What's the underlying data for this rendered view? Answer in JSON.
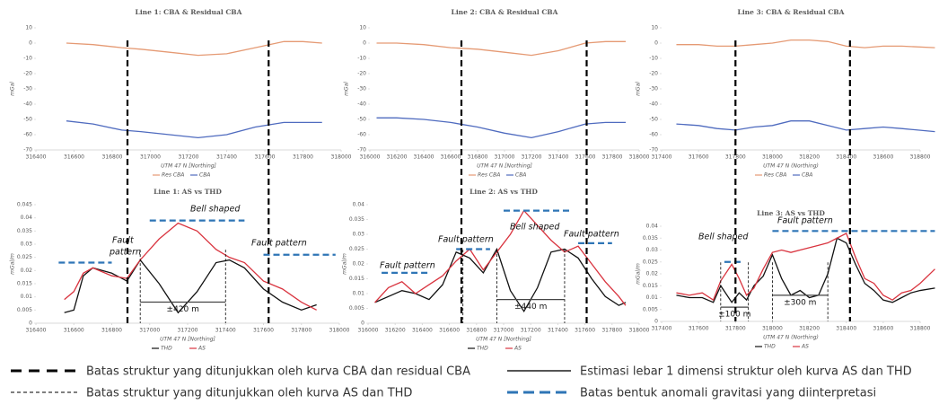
{
  "chart_data": [
    {
      "type": "line",
      "title": "Line 1: CBA & Residual CBA",
      "xlabel": "UTM 47 N [Northing]",
      "ylabel": "mGal",
      "xlim": [
        316400,
        318000
      ],
      "xticks": [
        316400,
        316600,
        316800,
        317000,
        317200,
        317400,
        317600,
        317800,
        318000
      ],
      "ylim": [
        -70,
        10
      ],
      "yticks": [
        10,
        0,
        -10,
        -20,
        -30,
        -40,
        -50,
        -60,
        -70
      ],
      "series": [
        {
          "name": "Res CBA",
          "color": "#e59a74",
          "x": [
            316560,
            316700,
            316850,
            316950,
            317100,
            317250,
            317400,
            317550,
            317700,
            317800,
            317900
          ],
          "values": [
            0,
            -1,
            -3,
            -4,
            -6,
            -8,
            -7,
            -3,
            1,
            1,
            0
          ]
        },
        {
          "name": "CBA",
          "color": "#4f6bbf",
          "x": [
            316560,
            316700,
            316850,
            316950,
            317100,
            317250,
            317400,
            317550,
            317700,
            317800,
            317900
          ],
          "values": [
            -51,
            -53,
            -57,
            -58,
            -60,
            -62,
            -60,
            -55,
            -52,
            -52,
            -52
          ]
        }
      ],
      "boundaries": [
        316880,
        317620
      ]
    },
    {
      "type": "line",
      "title": "Line 2: CBA & Residual CBA",
      "xlabel": "UTM 47 N [Northing]",
      "ylabel": "mGal",
      "xlim": [
        316000,
        318000
      ],
      "xticks": [
        316000,
        316200,
        316400,
        316600,
        316800,
        317000,
        317200,
        317400,
        317600,
        317800,
        318000
      ],
      "ylim": [
        -70,
        10
      ],
      "yticks": [
        10,
        0,
        -10,
        -20,
        -30,
        -40,
        -50,
        -60,
        -70
      ],
      "series": [
        {
          "name": "Res CBA",
          "color": "#e59a74",
          "x": [
            316050,
            316200,
            316400,
            316600,
            316800,
            317000,
            317200,
            317400,
            317600,
            317750,
            317900
          ],
          "values": [
            0,
            0,
            -1,
            -3,
            -4,
            -6,
            -8,
            -5,
            0,
            1,
            1
          ]
        },
        {
          "name": "CBA",
          "color": "#4f6bbf",
          "x": [
            316050,
            316200,
            316400,
            316600,
            316800,
            317000,
            317200,
            317400,
            317600,
            317750,
            317900
          ],
          "values": [
            -49,
            -49,
            -50,
            -52,
            -55,
            -59,
            -62,
            -58,
            -53,
            -52,
            -52
          ]
        }
      ],
      "boundaries": [
        316680,
        317610
      ]
    },
    {
      "type": "line",
      "title": "Line 3: CBA & Residual CBA",
      "xlabel": "UTM 47 N  (Northing)",
      "ylabel": "mGal",
      "xlim": [
        317400,
        318800
      ],
      "xticks": [
        317400,
        317600,
        317800,
        318000,
        318200,
        318400,
        318600,
        318800
      ],
      "ylim": [
        -70,
        10
      ],
      "yticks": [
        10,
        0,
        -10,
        -20,
        -30,
        -40,
        -50,
        -60,
        -70
      ],
      "series": [
        {
          "name": "Res CBA",
          "color": "#e59a74",
          "x": [
            317480,
            317600,
            317700,
            317800,
            317900,
            318000,
            318100,
            318200,
            318300,
            318400,
            318500,
            318600,
            318700,
            318880
          ],
          "values": [
            -1,
            -1,
            -2,
            -2,
            -1,
            0,
            2,
            2,
            1,
            -2,
            -3,
            -2,
            -2,
            -3
          ]
        },
        {
          "name": "CBA",
          "color": "#4f6bbf",
          "x": [
            317480,
            317600,
            317700,
            317800,
            317900,
            318000,
            318100,
            318200,
            318300,
            318400,
            318500,
            318600,
            318700,
            318880
          ],
          "values": [
            -53,
            -54,
            -56,
            -57,
            -55,
            -54,
            -51,
            -51,
            -54,
            -57,
            -56,
            -55,
            -56,
            -58
          ]
        }
      ],
      "boundaries": [
        317800,
        318420
      ]
    },
    {
      "type": "line",
      "title": "Line 1: AS vs THD",
      "xlabel": "UTM 47 N [Northing]",
      "ylabel": "mGal/m",
      "xlim": [
        316400,
        318000
      ],
      "xticks": [
        316400,
        316600,
        316800,
        317000,
        317200,
        317400,
        317600,
        317800,
        318000
      ],
      "ylim": [
        0,
        0.045
      ],
      "yticks": [
        0.045,
        0.04,
        0.035,
        0.03,
        0.025,
        0.02,
        0.015,
        0.01,
        0.005,
        0
      ],
      "series": [
        {
          "name": "THD",
          "color": "#111111",
          "x": [
            316550,
            316600,
            316650,
            316700,
            316800,
            316880,
            316950,
            317050,
            317150,
            317250,
            317350,
            317420,
            317500,
            317600,
            317700,
            317800,
            317880
          ],
          "values": [
            0.004,
            0.005,
            0.018,
            0.021,
            0.019,
            0.016,
            0.024,
            0.015,
            0.004,
            0.012,
            0.023,
            0.024,
            0.021,
            0.013,
            0.008,
            0.005,
            0.007
          ]
        },
        {
          "name": "AS",
          "color": "#d9343f",
          "x": [
            316550,
            316600,
            316650,
            316700,
            316800,
            316880,
            316950,
            317050,
            317150,
            317250,
            317350,
            317420,
            317500,
            317600,
            317700,
            317800,
            317880
          ],
          "values": [
            0.009,
            0.012,
            0.019,
            0.021,
            0.018,
            0.017,
            0.024,
            0.032,
            0.038,
            0.035,
            0.028,
            0.025,
            0.023,
            0.016,
            0.013,
            0.008,
            0.005
          ]
        }
      ],
      "as_boundaries": [
        316950,
        317400
      ],
      "anomaly_bounds": [
        {
          "x": [
            316520,
            316800
          ],
          "y": 0.023
        },
        {
          "x": [
            317000,
            317500
          ],
          "y": 0.039
        },
        {
          "x": [
            317600,
            317980
          ],
          "y": 0.026
        }
      ],
      "widths": [
        {
          "x": [
            316950,
            317400
          ],
          "y": 0.008,
          "label": "±420 m"
        }
      ],
      "annotations": [
        "Fault",
        "pattern",
        "Bell shaped",
        "Fault  pattern"
      ]
    },
    {
      "type": "line",
      "title": "Line 2: AS vs THD",
      "xlabel": "UTM 47 N [Northing]",
      "ylabel": "mGal/m",
      "xlim": [
        316000,
        318000
      ],
      "xticks": [
        316000,
        316200,
        316400,
        316600,
        316800,
        317000,
        317200,
        317400,
        317600,
        317800,
        318000
      ],
      "ylim": [
        0,
        0.04
      ],
      "yticks": [
        0.04,
        0.035,
        0.03,
        0.025,
        0.02,
        0.015,
        0.01,
        0.005,
        0
      ],
      "series": [
        {
          "name": "THD",
          "color": "#111111",
          "x": [
            316050,
            316150,
            316250,
            316350,
            316450,
            316550,
            316650,
            316750,
            316850,
            316950,
            317050,
            317150,
            317250,
            317350,
            317450,
            317550,
            317650,
            317750,
            317850,
            317900
          ],
          "values": [
            0.007,
            0.009,
            0.011,
            0.01,
            0.008,
            0.013,
            0.024,
            0.022,
            0.017,
            0.025,
            0.011,
            0.004,
            0.012,
            0.024,
            0.025,
            0.022,
            0.015,
            0.009,
            0.006,
            0.007
          ]
        },
        {
          "name": "AS",
          "color": "#d9343f",
          "x": [
            316050,
            316150,
            316250,
            316350,
            316450,
            316550,
            316650,
            316750,
            316850,
            316950,
            317050,
            317150,
            317250,
            317350,
            317450,
            317550,
            317650,
            317750,
            317850,
            317900
          ],
          "values": [
            0.007,
            0.012,
            0.014,
            0.01,
            0.013,
            0.016,
            0.021,
            0.025,
            0.018,
            0.024,
            0.03,
            0.038,
            0.033,
            0.028,
            0.024,
            0.026,
            0.02,
            0.014,
            0.009,
            0.006
          ]
        }
      ],
      "as_boundaries": [
        316700,
        316950,
        317450
      ],
      "anomaly_bounds": [
        {
          "x": [
            316100,
            316450
          ],
          "y": 0.017
        },
        {
          "x": [
            316650,
            316900
          ],
          "y": 0.025
        },
        {
          "x": [
            317000,
            317500
          ],
          "y": 0.038
        },
        {
          "x": [
            317550,
            317800
          ],
          "y": 0.027
        }
      ],
      "widths": [
        {
          "x": [
            316950,
            317450
          ],
          "y": 0.008,
          "label": "±440 m"
        }
      ],
      "annotations": [
        "Fault pattern",
        "Fault pattern",
        "Bell shaped",
        "Fault pattern"
      ]
    },
    {
      "type": "line",
      "title": "Line 3: AS vs THD",
      "xlabel": "UTM 47 N  (Northing)",
      "ylabel": "mGal/m",
      "xlim": [
        317400,
        318800
      ],
      "xticks": [
        317400,
        317600,
        317800,
        318000,
        318200,
        318400,
        318600,
        318800
      ],
      "ylim": [
        0,
        0.04
      ],
      "yticks": [
        0.04,
        0.035,
        0.03,
        0.025,
        0.02,
        0.015,
        0.01,
        0.005,
        0
      ],
      "series": [
        {
          "name": "THD",
          "color": "#111111",
          "x": [
            317480,
            317550,
            317620,
            317680,
            317720,
            317780,
            317820,
            317860,
            317900,
            317950,
            318000,
            318050,
            318100,
            318150,
            318200,
            318250,
            318300,
            318350,
            318400,
            318450,
            318500,
            318550,
            318600,
            318650,
            318700,
            318750,
            318800,
            318880
          ],
          "values": [
            0.011,
            0.01,
            0.01,
            0.008,
            0.015,
            0.008,
            0.012,
            0.009,
            0.015,
            0.019,
            0.028,
            0.018,
            0.011,
            0.013,
            0.01,
            0.011,
            0.02,
            0.035,
            0.033,
            0.024,
            0.016,
            0.013,
            0.009,
            0.008,
            0.01,
            0.012,
            0.013,
            0.014
          ]
        },
        {
          "name": "AS",
          "color": "#d9343f",
          "x": [
            317480,
            317550,
            317620,
            317680,
            317720,
            317780,
            317820,
            317860,
            317900,
            317950,
            318000,
            318050,
            318100,
            318150,
            318200,
            318250,
            318300,
            318350,
            318400,
            318450,
            318500,
            318550,
            318600,
            318650,
            318700,
            318750,
            318800,
            318880
          ],
          "values": [
            0.012,
            0.011,
            0.012,
            0.009,
            0.017,
            0.024,
            0.018,
            0.011,
            0.014,
            0.022,
            0.029,
            0.03,
            0.029,
            0.03,
            0.031,
            0.032,
            0.033,
            0.035,
            0.037,
            0.027,
            0.018,
            0.016,
            0.011,
            0.009,
            0.012,
            0.013,
            0.016,
            0.022
          ]
        }
      ],
      "as_boundaries": [
        317720,
        317870,
        318000,
        318300
      ],
      "anomaly_bounds": [
        {
          "x": [
            317740,
            317840
          ],
          "y": 0.025
        },
        {
          "x": [
            318000,
            318880
          ],
          "y": 0.038
        }
      ],
      "widths": [
        {
          "x": [
            317720,
            317870
          ],
          "y": 0.006,
          "label": "±100 m"
        },
        {
          "x": [
            318000,
            318300
          ],
          "y": 0.011,
          "label": "±300 m"
        }
      ],
      "annotations": [
        "Bell shaped",
        "Fault pattern"
      ]
    }
  ],
  "legend": {
    "items": [
      "Batas struktur yang ditunjukkan oleh kurva CBA dan residual CBA",
      "Batas struktur yang ditunjukkan oleh kurva AS dan THD",
      "Estimasi lebar 1 dimensi struktur oleh kurva AS dan THD",
      "Batas bentuk anomali gravitasi yang diinterpretasi"
    ]
  }
}
